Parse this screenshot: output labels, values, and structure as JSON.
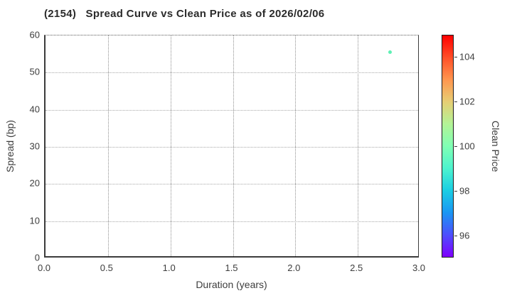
{
  "chart_data": {
    "type": "scatter",
    "title": "(2154)   Spread Curve vs Clean Price as of 2026/02/06",
    "xlabel": "Duration (years)",
    "ylabel": "Spread (bp)",
    "xlim": [
      0,
      3
    ],
    "ylim": [
      0,
      60
    ],
    "xticks": [
      {
        "value": 0,
        "label": "0.0"
      },
      {
        "value": 0.5,
        "label": "0.5"
      },
      {
        "value": 1,
        "label": "1.0"
      },
      {
        "value": 1.5,
        "label": "1.5"
      },
      {
        "value": 2,
        "label": "2.0"
      },
      {
        "value": 2.5,
        "label": "2.5"
      },
      {
        "value": 3,
        "label": "3.0"
      }
    ],
    "yticks": [
      {
        "value": 0,
        "label": "0"
      },
      {
        "value": 10,
        "label": "10"
      },
      {
        "value": 20,
        "label": "20"
      },
      {
        "value": 30,
        "label": "30"
      },
      {
        "value": 40,
        "label": "40"
      },
      {
        "value": 50,
        "label": "50"
      },
      {
        "value": 60,
        "label": "60"
      }
    ],
    "grid": {
      "on": true,
      "linestyle": "dotted",
      "color": "#a0a0a0"
    },
    "legend": "none",
    "points": [
      {
        "x": 2.77,
        "y": 55.4,
        "clean_price": 99.6,
        "color": "#5ff0b5"
      }
    ],
    "colorbar": {
      "label": "Clean Price",
      "min": 95,
      "max": 105,
      "colormap": "rainbow",
      "ticks": [
        {
          "value": 96,
          "label": "96"
        },
        {
          "value": 98,
          "label": "98"
        },
        {
          "value": 100,
          "label": "100"
        },
        {
          "value": 102,
          "label": "102"
        },
        {
          "value": 104,
          "label": "104"
        }
      ],
      "gradient_stops": [
        {
          "value": 95,
          "color": "#7f00ff"
        },
        {
          "value": 96,
          "color": "#4d4ffc"
        },
        {
          "value": 97,
          "color": "#1a96f3"
        },
        {
          "value": 98,
          "color": "#1acee3"
        },
        {
          "value": 99,
          "color": "#4df3ce"
        },
        {
          "value": 100,
          "color": "#80ffb4"
        },
        {
          "value": 101,
          "color": "#b3f396"
        },
        {
          "value": 102,
          "color": "#e6ce74"
        },
        {
          "value": 103,
          "color": "#ff964f"
        },
        {
          "value": 104,
          "color": "#ff4f28"
        },
        {
          "value": 105,
          "color": "#ff0000"
        }
      ]
    }
  }
}
